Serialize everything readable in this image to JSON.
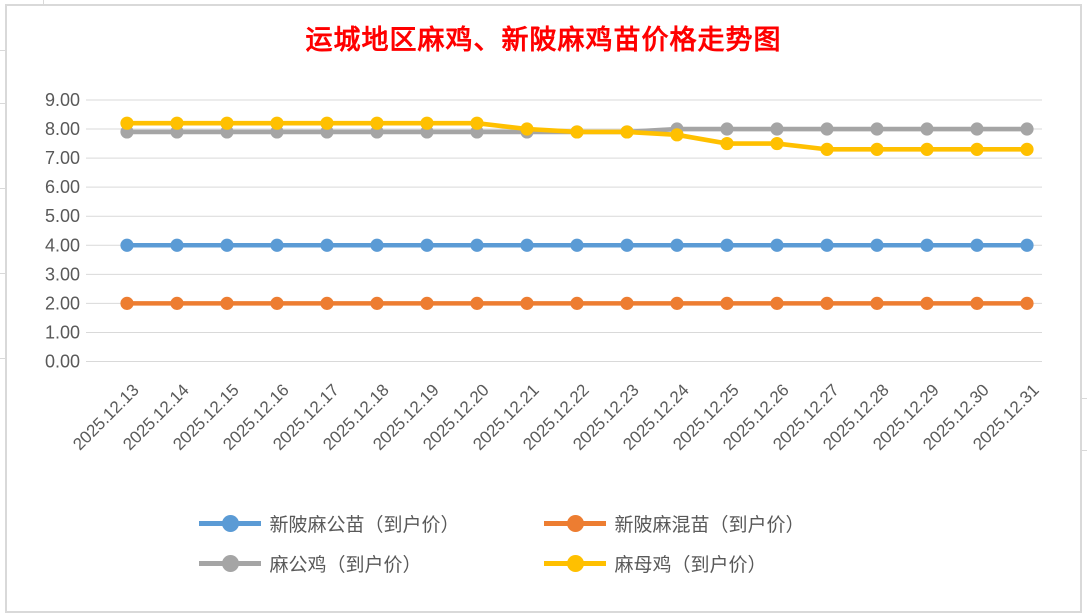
{
  "chart_data": {
    "type": "line",
    "title": "运城地区麻鸡、新陂麻鸡苗价格走势图",
    "title_color": "#FF0000",
    "categories": [
      "2025.12.13",
      "2025.12.14",
      "2025.12.15",
      "2025.12.16",
      "2025.12.17",
      "2025.12.18",
      "2025.12.19",
      "2025.12.20",
      "2025.12.21",
      "2025.12.22",
      "2025.12.23",
      "2025.12.24",
      "2025.12.25",
      "2025.12.26",
      "2025.12.27",
      "2025.12.28",
      "2025.12.29",
      "2025.12.30",
      "2025.12.31"
    ],
    "series": [
      {
        "name": "新陂麻公苗（到户价）",
        "color": "#5B9BD5",
        "values": [
          4.0,
          4.0,
          4.0,
          4.0,
          4.0,
          4.0,
          4.0,
          4.0,
          4.0,
          4.0,
          4.0,
          4.0,
          4.0,
          4.0,
          4.0,
          4.0,
          4.0,
          4.0,
          4.0
        ]
      },
      {
        "name": "新陂麻混苗（到户价）",
        "color": "#ED7D31",
        "values": [
          2.0,
          2.0,
          2.0,
          2.0,
          2.0,
          2.0,
          2.0,
          2.0,
          2.0,
          2.0,
          2.0,
          2.0,
          2.0,
          2.0,
          2.0,
          2.0,
          2.0,
          2.0,
          2.0
        ]
      },
      {
        "name": "麻公鸡（到户价）",
        "color": "#A5A5A5",
        "values": [
          7.9,
          7.9,
          7.9,
          7.9,
          7.9,
          7.9,
          7.9,
          7.9,
          7.9,
          7.9,
          7.9,
          8.0,
          8.0,
          8.0,
          8.0,
          8.0,
          8.0,
          8.0,
          8.0
        ]
      },
      {
        "name": "麻母鸡（到户价）",
        "color": "#FFC000",
        "values": [
          8.2,
          8.2,
          8.2,
          8.2,
          8.2,
          8.2,
          8.2,
          8.2,
          8.0,
          7.9,
          7.9,
          7.8,
          7.5,
          7.5,
          7.3,
          7.3,
          7.3,
          7.3,
          7.3
        ]
      }
    ],
    "ylim": [
      0,
      9
    ],
    "ytick_step": 1,
    "ytick_labels": [
      "0.00",
      "1.00",
      "2.00",
      "3.00",
      "4.00",
      "5.00",
      "6.00",
      "7.00",
      "8.00",
      "9.00"
    ],
    "xlabel": "",
    "ylabel": "",
    "grid": true,
    "gridline_color": "#D9D9D9",
    "axis_label_color": "#595959",
    "legend_position": "bottom",
    "x_label_rotation_deg": 45
  },
  "window": {
    "background_color": "#FFFFFF",
    "chart_border_color": "#D9D9D9"
  }
}
